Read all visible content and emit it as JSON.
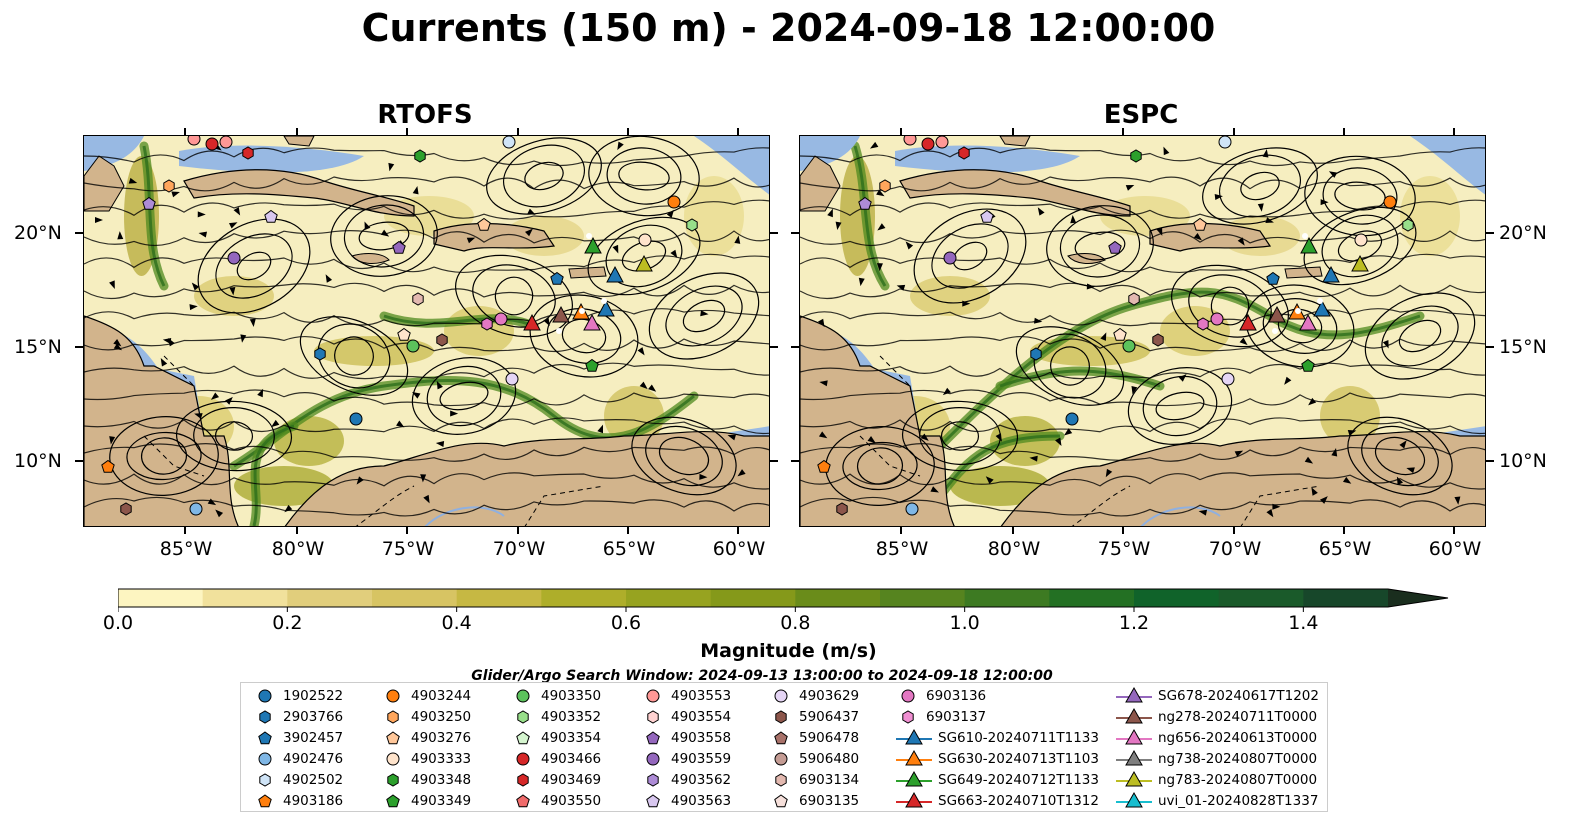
{
  "title": "Currents (150 m) - 2024-09-18 12:00:00",
  "panels": [
    {
      "title": "RTOFS"
    },
    {
      "title": "ESPC"
    }
  ],
  "axes": {
    "lat_ticks": [
      "20°N",
      "15°N",
      "10°N"
    ],
    "lon_ticks": [
      "85°W",
      "80°W",
      "75°W",
      "70°W",
      "65°W",
      "60°W"
    ]
  },
  "colorbar": {
    "label": "Magnitude (m/s)",
    "ticks": [
      "0.0",
      "0.2",
      "0.4",
      "0.6",
      "0.8",
      "1.0",
      "1.2",
      "1.4"
    ],
    "range": [
      0.0,
      1.5
    ],
    "colors": [
      "#fdf5c1",
      "#f1e19c",
      "#e1ce7c",
      "#d7c463",
      "#c6b843",
      "#aeae2a",
      "#97a320",
      "#85991a",
      "#6a8c1a",
      "#56841f",
      "#3d7a22",
      "#237023",
      "#10632a",
      "#1a5a2a",
      "#17472a",
      "#1a2e1e"
    ]
  },
  "search_window": "Glider/Argo Search Window: 2024-09-13 13:00:00 to 2024-09-18 12:00:00",
  "legend": {
    "columns": [
      [
        {
          "label": "1902522",
          "marker": "circle",
          "color": "#1f77b4"
        },
        {
          "label": "2903766",
          "marker": "hexagon",
          "color": "#1f77b4"
        },
        {
          "label": "3902457",
          "marker": "pentagon",
          "color": "#1f77b4"
        },
        {
          "label": "4902476",
          "marker": "circle",
          "color": "#7fb7e6"
        },
        {
          "label": "4902502",
          "marker": "hexagon",
          "color": "#cfe4f7"
        },
        {
          "label": "4903186",
          "marker": "pentagon",
          "color": "#ff7f0e"
        }
      ],
      [
        {
          "label": "4903244",
          "marker": "circle",
          "color": "#ff7f0e"
        },
        {
          "label": "4903250",
          "marker": "hexagon",
          "color": "#ffa65c"
        },
        {
          "label": "4903276",
          "marker": "pentagon",
          "color": "#ffc79a"
        },
        {
          "label": "4903333",
          "marker": "circle",
          "color": "#ffe4cc"
        },
        {
          "label": "4903348",
          "marker": "hexagon",
          "color": "#2ca02c"
        },
        {
          "label": "4903349",
          "marker": "pentagon",
          "color": "#2ca02c"
        }
      ],
      [
        {
          "label": "4903350",
          "marker": "circle",
          "color": "#5cc25c"
        },
        {
          "label": "4903352",
          "marker": "hexagon",
          "color": "#98df8a"
        },
        {
          "label": "4903354",
          "marker": "pentagon",
          "color": "#d5f5cf"
        },
        {
          "label": "4903466",
          "marker": "circle",
          "color": "#d62728"
        },
        {
          "label": "4903469",
          "marker": "hexagon",
          "color": "#d62728"
        },
        {
          "label": "4903550",
          "marker": "pentagon",
          "color": "#f06b6b"
        }
      ],
      [
        {
          "label": "4903553",
          "marker": "circle",
          "color": "#ff9896"
        },
        {
          "label": "4903554",
          "marker": "hexagon",
          "color": "#ffd2d1"
        },
        {
          "label": "4903558",
          "marker": "pentagon",
          "color": "#9467bd"
        },
        {
          "label": "4903559",
          "marker": "circle",
          "color": "#9467bd"
        },
        {
          "label": "4903562",
          "marker": "hexagon",
          "color": "#ad8bd6"
        },
        {
          "label": "4903563",
          "marker": "pentagon",
          "color": "#d8c7ef"
        }
      ],
      [
        {
          "label": "4903629",
          "marker": "circle",
          "color": "#e5d5f5"
        },
        {
          "label": "5906437",
          "marker": "hexagon",
          "color": "#8c564b"
        },
        {
          "label": "5906478",
          "marker": "pentagon",
          "color": "#a8726a"
        },
        {
          "label": "5906480",
          "marker": "circle",
          "color": "#c49c94"
        },
        {
          "label": "6903134",
          "marker": "hexagon",
          "color": "#e3b9b0"
        },
        {
          "label": "6903135",
          "marker": "pentagon",
          "color": "#f6e0db"
        }
      ],
      [
        {
          "label": "6903136",
          "marker": "circle",
          "color": "#e377c2"
        },
        {
          "label": "6903137",
          "marker": "hexagon",
          "color": "#f08fd2"
        },
        {
          "label": "SG610-20240711T1133",
          "marker": "triangle-line",
          "color": "#1f77b4"
        },
        {
          "label": "SG630-20240713T1103",
          "marker": "triangle-line",
          "color": "#ff7f0e"
        },
        {
          "label": "SG649-20240712T1133",
          "marker": "triangle-line",
          "color": "#2ca02c"
        },
        {
          "label": "SG663-20240710T1312",
          "marker": "triangle-line",
          "color": "#d62728"
        }
      ],
      [
        {
          "label": "SG678-20240617T1202",
          "marker": "triangle-line",
          "color": "#9467bd"
        },
        {
          "label": "ng278-20240711T0000",
          "marker": "triangle-line",
          "color": "#8c564b"
        },
        {
          "label": "ng656-20240613T0000",
          "marker": "triangle-line",
          "color": "#e377c2"
        },
        {
          "label": "ng738-20240807T0000",
          "marker": "triangle-line",
          "color": "#7f7f7f"
        },
        {
          "label": "ng783-20240807T0000",
          "marker": "triangle-line",
          "color": "#bcbd22"
        },
        {
          "label": "uvi_01-20240828T1337",
          "marker": "triangle-line",
          "color": "#17becf"
        }
      ]
    ]
  }
}
